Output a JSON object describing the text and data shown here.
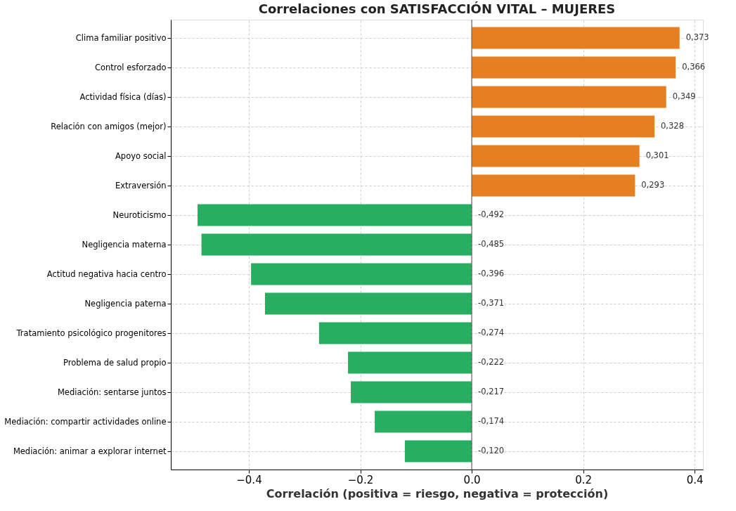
{
  "chart_data": {
    "type": "bar",
    "orientation": "horizontal",
    "title": "Correlaciones con SATISFACCIÓN VITAL – MUJERES",
    "xlabel": "Correlación (positiva = riesgo, negativa = protección)",
    "categories": [
      "Clima familiar positivo",
      "Control esforzado",
      "Actividad física (días)",
      "Relación con amigos (mejor)",
      "Apoyo social",
      "Extraversión",
      "Neuroticismo",
      "Negligencia materna",
      "Actitud negativa hacia centro",
      "Negligencia paterna",
      "Tratamiento psicológico progenitores",
      "Problema de salud propio",
      "Mediación: sentarse juntos",
      "Mediación: compartir actividades online",
      "Mediación: animar a explorar internet"
    ],
    "values": [
      0.373,
      0.366,
      0.349,
      0.328,
      0.301,
      0.293,
      -0.492,
      -0.485,
      -0.396,
      -0.371,
      -0.274,
      -0.222,
      -0.217,
      -0.174,
      -0.12
    ],
    "value_labels": [
      "0,373",
      "0,366",
      "0,349",
      "0,328",
      "0,301",
      "0,293",
      "-0,492",
      "-0,485",
      "-0,396",
      "-0,371",
      "-0,274",
      "-0,222",
      "-0,217",
      "-0,174",
      "-0,120"
    ],
    "colors": [
      "#e67e22",
      "#e67e22",
      "#e67e22",
      "#e67e22",
      "#e67e22",
      "#e67e22",
      "#27ae60",
      "#27ae60",
      "#27ae60",
      "#27ae60",
      "#27ae60",
      "#27ae60",
      "#27ae60",
      "#27ae60",
      "#27ae60"
    ],
    "xlim": [
      -0.54,
      0.415
    ],
    "xticks": [
      {
        "value": -0.4,
        "label": "−0.4"
      },
      {
        "value": -0.2,
        "label": "−0.2"
      },
      {
        "value": 0,
        "label": "0.0"
      },
      {
        "value": 0.2,
        "label": "0.2"
      },
      {
        "value": 0.4,
        "label": "0.4"
      }
    ],
    "ref_lines": [
      {
        "axis": "x",
        "value": 0,
        "color": "#666666",
        "line_style": "solid"
      }
    ],
    "grid": true
  }
}
